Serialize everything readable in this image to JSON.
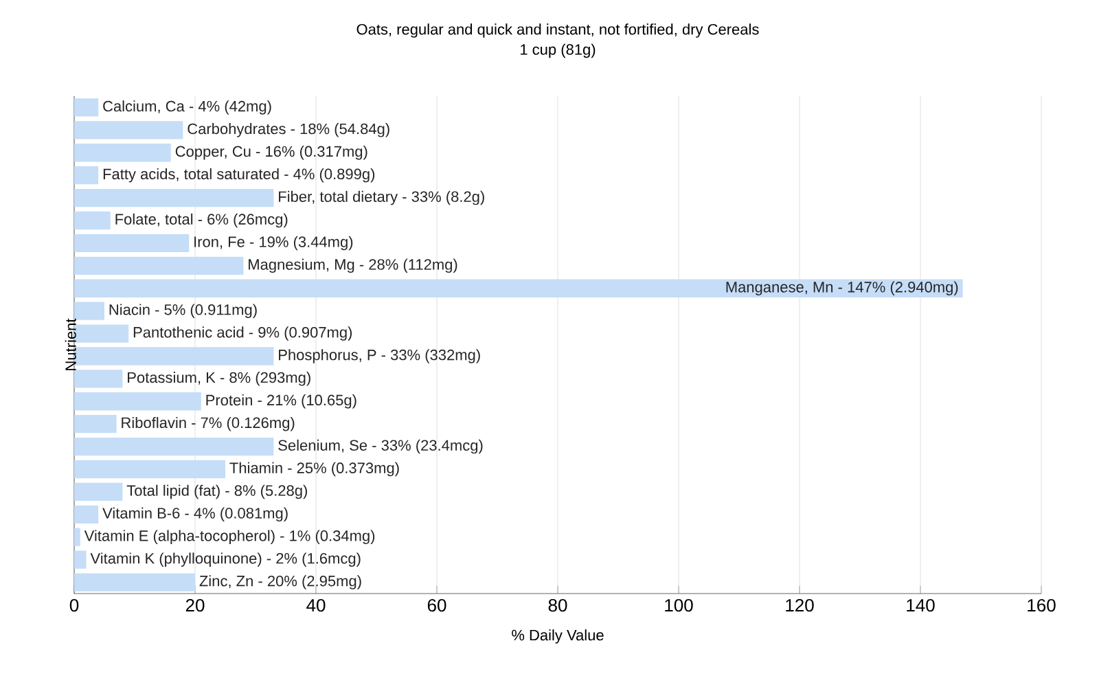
{
  "chart_data": {
    "type": "bar",
    "orientation": "horizontal",
    "title": "Oats, regular and quick and instant, not fortified, dry Cereals",
    "subtitle": "1 cup (81g)",
    "xlabel": "% Daily Value",
    "ylabel": "Nutrient",
    "categories": [
      "Calcium, Ca - 4% (42mg)",
      "Carbohydrates - 18% (54.84g)",
      "Copper, Cu - 16% (0.317mg)",
      "Fatty acids, total saturated - 4% (0.899g)",
      "Fiber, total dietary - 33% (8.2g)",
      "Folate, total - 6% (26mcg)",
      "Iron, Fe - 19% (3.44mg)",
      "Magnesium, Mg - 28% (112mg)",
      "Manganese, Mn - 147% (2.940mg)",
      "Niacin - 5% (0.911mg)",
      "Pantothenic acid - 9% (0.907mg)",
      "Phosphorus, P - 33% (332mg)",
      "Potassium, K - 8% (293mg)",
      "Protein - 21% (10.65g)",
      "Riboflavin - 7% (0.126mg)",
      "Selenium, Se - 33% (23.4mcg)",
      "Thiamin - 25% (0.373mg)",
      "Total lipid (fat) - 8% (5.28g)",
      "Vitamin B-6 - 4% (0.081mg)",
      "Vitamin E (alpha-tocopherol) - 1% (0.34mg)",
      "Vitamin K (phylloquinone) - 2% (1.6mcg)",
      "Zinc, Zn - 20% (2.95mg)"
    ],
    "values": [
      4,
      18,
      16,
      4,
      33,
      6,
      19,
      28,
      147,
      5,
      9,
      33,
      8,
      21,
      7,
      33,
      25,
      8,
      4,
      1,
      2,
      20
    ],
    "color": "#c6ddf7",
    "xlim": [
      0,
      160
    ],
    "xticks": [
      0,
      20,
      40,
      60,
      80,
      100,
      120,
      140,
      160
    ],
    "grid": "x"
  }
}
